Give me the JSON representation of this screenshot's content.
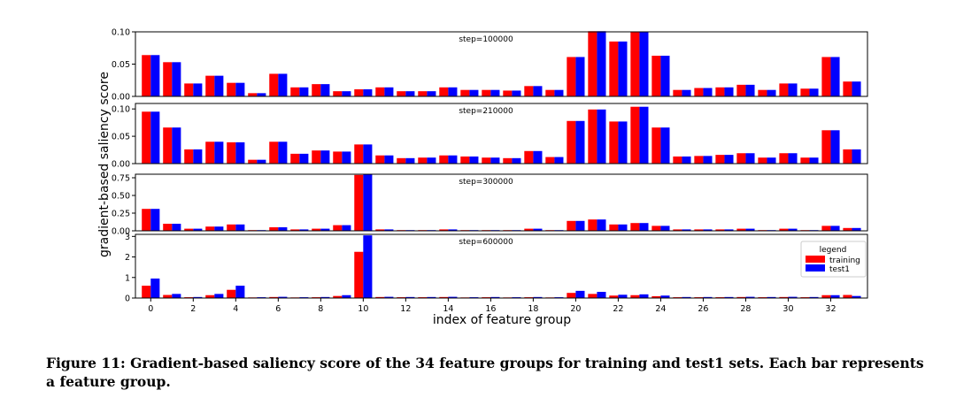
{
  "chart_data": {
    "type": "bar",
    "ylabel": "gradient-based saliency score",
    "xlabel": "index of feature group",
    "x_ticks": [
      "0",
      "2",
      "4",
      "6",
      "8",
      "10",
      "12",
      "14",
      "16",
      "18",
      "20",
      "22",
      "24",
      "26",
      "28",
      "30",
      "32"
    ],
    "legend": {
      "title": "legend",
      "placement": "right",
      "entries": [
        "training",
        "test1"
      ]
    },
    "colors": {
      "training": "#ff0000",
      "test1": "#0000ff"
    },
    "grid": false,
    "panels": [
      {
        "label": "step=100000",
        "ylim": [
          0,
          0.1
        ],
        "y_ticks": [
          "0.00",
          "0.05",
          "0.10"
        ],
        "series": [
          {
            "name": "training",
            "values": [
              0.064,
              0.053,
              0.02,
              0.032,
              0.021,
              0.005,
              0.035,
              0.014,
              0.019,
              0.008,
              0.011,
              0.014,
              0.008,
              0.008,
              0.014,
              0.01,
              0.01,
              0.009,
              0.016,
              0.01,
              0.061,
              0.101,
              0.085,
              0.1,
              0.063,
              0.01,
              0.013,
              0.014,
              0.018,
              0.01,
              0.02,
              0.012,
              0.061,
              0.023
            ]
          },
          {
            "name": "test1",
            "values": [
              0.064,
              0.053,
              0.02,
              0.032,
              0.021,
              0.005,
              0.035,
              0.014,
              0.019,
              0.008,
              0.011,
              0.014,
              0.008,
              0.008,
              0.014,
              0.01,
              0.01,
              0.009,
              0.016,
              0.01,
              0.061,
              0.101,
              0.085,
              0.1,
              0.063,
              0.01,
              0.013,
              0.014,
              0.018,
              0.01,
              0.02,
              0.012,
              0.061,
              0.023
            ]
          }
        ]
      },
      {
        "label": "step=210000",
        "ylim": [
          0,
          0.11
        ],
        "y_ticks": [
          "0.00",
          "0.05",
          "0.10"
        ],
        "series": [
          {
            "name": "training",
            "values": [
              0.095,
              0.066,
              0.026,
              0.04,
              0.039,
              0.007,
              0.04,
              0.018,
              0.024,
              0.022,
              0.035,
              0.015,
              0.01,
              0.011,
              0.015,
              0.013,
              0.011,
              0.01,
              0.023,
              0.012,
              0.078,
              0.099,
              0.077,
              0.104,
              0.066,
              0.013,
              0.014,
              0.016,
              0.019,
              0.011,
              0.019,
              0.011,
              0.061,
              0.026
            ]
          },
          {
            "name": "test1",
            "values": [
              0.095,
              0.066,
              0.026,
              0.04,
              0.039,
              0.007,
              0.04,
              0.018,
              0.024,
              0.022,
              0.035,
              0.015,
              0.01,
              0.011,
              0.015,
              0.013,
              0.011,
              0.01,
              0.023,
              0.012,
              0.078,
              0.099,
              0.077,
              0.104,
              0.066,
              0.013,
              0.014,
              0.016,
              0.019,
              0.011,
              0.019,
              0.011,
              0.061,
              0.026
            ]
          }
        ]
      },
      {
        "label": "step=300000",
        "ylim": [
          0,
          0.8
        ],
        "y_ticks": [
          "0.00",
          "0.25",
          "0.50",
          "0.75"
        ],
        "series": [
          {
            "name": "training",
            "values": [
              0.31,
              0.1,
              0.03,
              0.06,
              0.09,
              0.01,
              0.05,
              0.02,
              0.03,
              0.08,
              0.79,
              0.02,
              0.01,
              0.01,
              0.02,
              0.01,
              0.01,
              0.01,
              0.03,
              0.01,
              0.14,
              0.16,
              0.09,
              0.11,
              0.07,
              0.02,
              0.02,
              0.02,
              0.03,
              0.01,
              0.03,
              0.01,
              0.07,
              0.04
            ]
          },
          {
            "name": "test1",
            "values": [
              0.31,
              0.1,
              0.03,
              0.06,
              0.09,
              0.01,
              0.05,
              0.02,
              0.03,
              0.08,
              0.8,
              0.02,
              0.01,
              0.01,
              0.02,
              0.01,
              0.01,
              0.01,
              0.03,
              0.01,
              0.14,
              0.16,
              0.09,
              0.11,
              0.07,
              0.02,
              0.02,
              0.02,
              0.03,
              0.01,
              0.03,
              0.01,
              0.07,
              0.04
            ]
          }
        ]
      },
      {
        "label": "step=600000",
        "ylim": [
          0,
          3.1
        ],
        "y_ticks": [
          "0",
          "1",
          "2",
          "3"
        ],
        "series": [
          {
            "name": "training",
            "values": [
              0.6,
              0.15,
              0.04,
              0.14,
              0.4,
              0.03,
              0.05,
              0.03,
              0.04,
              0.1,
              2.25,
              0.05,
              0.04,
              0.04,
              0.05,
              0.03,
              0.04,
              0.03,
              0.04,
              0.03,
              0.25,
              0.2,
              0.12,
              0.14,
              0.09,
              0.04,
              0.04,
              0.04,
              0.05,
              0.04,
              0.05,
              0.04,
              0.14,
              0.15
            ]
          },
          {
            "name": "test1",
            "values": [
              0.95,
              0.2,
              0.05,
              0.2,
              0.6,
              0.04,
              0.06,
              0.04,
              0.05,
              0.14,
              3.05,
              0.06,
              0.05,
              0.05,
              0.06,
              0.04,
              0.05,
              0.04,
              0.05,
              0.04,
              0.35,
              0.3,
              0.16,
              0.18,
              0.12,
              0.05,
              0.05,
              0.05,
              0.06,
              0.05,
              0.06,
              0.05,
              0.14,
              0.1
            ]
          }
        ]
      }
    ]
  },
  "caption": "Figure 11: Gradient-based saliency score of the 34 feature groups for training and test1 sets.  Each bar represents a feature group."
}
